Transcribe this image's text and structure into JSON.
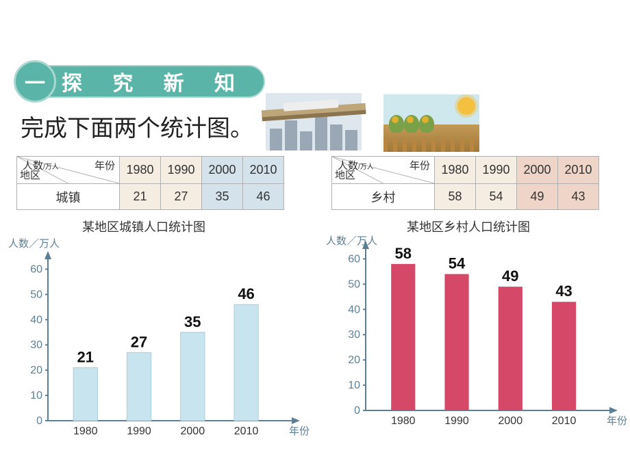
{
  "badge": {
    "circle": "一",
    "title": "探 究 新 知"
  },
  "subtitle": "完成下面两个统计图。",
  "table_header": {
    "people": "人数",
    "people_unit": "/万人",
    "year": "年份",
    "region": "地区"
  },
  "years": [
    "1980",
    "1990",
    "2000",
    "2010"
  ],
  "left_table": {
    "row_label": "城镇",
    "values": [
      "21",
      "27",
      "35",
      "46"
    ]
  },
  "right_table": {
    "row_label": "乡村",
    "values": [
      "58",
      "54",
      "49",
      "43"
    ]
  },
  "chart1": {
    "title": "某地区城镇人口统计图",
    "ylabel": "人数／万人",
    "xlabel": "年份",
    "y_ticks": [
      0,
      10,
      20,
      30,
      40,
      50,
      60
    ],
    "ylim": [
      0,
      65
    ],
    "categories": [
      "1980",
      "1990",
      "2000",
      "2010"
    ],
    "values": [
      21,
      27,
      35,
      46
    ],
    "bar_color": "#c8e5ef",
    "axis_color": "#5d7f93"
  },
  "chart2": {
    "title": "某地区乡村人口统计图",
    "ylabel": "人数／万人",
    "xlabel": "年份",
    "y_ticks": [
      0,
      10,
      20,
      30,
      40,
      50,
      60
    ],
    "ylim": [
      0,
      65
    ],
    "categories": [
      "1980",
      "1990",
      "2000",
      "2010"
    ],
    "values": [
      58,
      54,
      49,
      43
    ],
    "bar_color": "#d54868",
    "axis_color": "#5d7f93"
  }
}
